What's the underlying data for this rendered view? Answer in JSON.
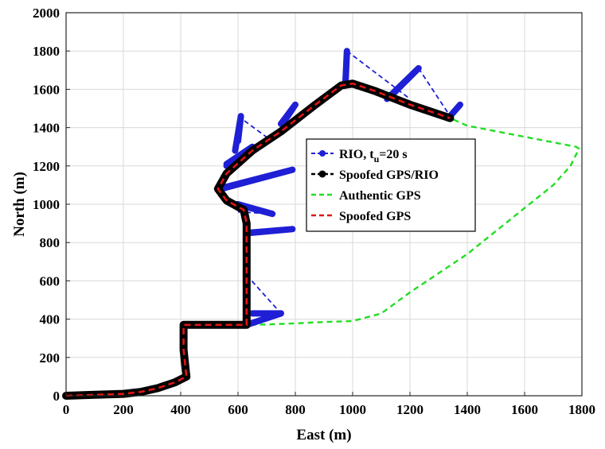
{
  "chart_data": {
    "type": "line",
    "title": "",
    "xlabel": "East (m)",
    "ylabel": "North (m)",
    "xlim": [
      0,
      1800
    ],
    "ylim": [
      0,
      2000
    ],
    "xticks": [
      "0",
      "200",
      "400",
      "600",
      "800",
      "1000",
      "1200",
      "1400",
      "1600",
      "1800"
    ],
    "yticks": [
      "0",
      "200",
      "400",
      "600",
      "800",
      "1000",
      "1200",
      "1400",
      "1600",
      "1800",
      "2000"
    ],
    "grid": true,
    "legend_position": "center-right",
    "series": [
      {
        "name": "RIO, t",
        "name_sub": "u",
        "name_suffix": "=20 s",
        "color": "#1f1fd6",
        "style": "dashed-with-markers",
        "segments": [
          [
            [
              630,
              370
            ],
            [
              750,
              430
            ],
            [
              650,
              430
            ]
          ],
          [
            [
              630,
              850
            ],
            [
              790,
              870
            ],
            [
              640,
              850
            ]
          ],
          [
            [
              600,
              1000
            ],
            [
              720,
              950
            ],
            [
              595,
              1000
            ]
          ],
          [
            [
              540,
              1080
            ],
            [
              790,
              1180
            ],
            [
              545,
              1085
            ]
          ],
          [
            [
              560,
              1200
            ],
            [
              650,
              1300
            ],
            [
              560,
              1210
            ]
          ],
          [
            [
              600,
              1330
            ],
            [
              610,
              1460
            ],
            [
              590,
              1280
            ]
          ],
          [
            [
              750,
              1420
            ],
            [
              800,
              1520
            ],
            [
              760,
              1430
            ]
          ],
          [
            [
              975,
              1630
            ],
            [
              980,
              1800
            ],
            [
              975,
              1640
            ]
          ],
          [
            [
              1120,
              1550
            ],
            [
              1230,
              1710
            ],
            [
              1130,
              1560
            ]
          ],
          [
            [
              1340,
              1460
            ],
            [
              1375,
              1520
            ]
          ]
        ],
        "dashed_links": [
          [
            [
              630,
              370
            ],
            [
              750,
              430
            ]
          ],
          [
            [
              630,
              630
            ],
            [
              750,
              430
            ]
          ],
          [
            [
              600,
              960
            ],
            [
              720,
              950
            ]
          ],
          [
            [
              540,
              1080
            ],
            [
              790,
              1180
            ]
          ],
          [
            [
              600,
              1460
            ],
            [
              700,
              1350
            ]
          ],
          [
            [
              980,
              1800
            ],
            [
              1200,
              1550
            ]
          ],
          [
            [
              1230,
              1710
            ],
            [
              1340,
              1460
            ]
          ]
        ]
      },
      {
        "name": "Spoofed GPS/RIO",
        "color": "#000000",
        "style": "solid-with-markers",
        "x": [
          0,
          100,
          200,
          260,
          320,
          380,
          420,
          410,
          410,
          440,
          560,
          630,
          630,
          630,
          620,
          560,
          530,
          560,
          650,
          750,
          870,
          960,
          1000,
          1080,
          1200,
          1340
        ],
        "y": [
          0,
          5,
          10,
          20,
          40,
          70,
          100,
          240,
          370,
          370,
          370,
          370,
          600,
          900,
          970,
          1020,
          1080,
          1160,
          1280,
          1380,
          1520,
          1620,
          1630,
          1590,
          1520,
          1450
        ]
      },
      {
        "name": "Authentic GPS",
        "color": "#22dd22",
        "style": "dashed",
        "x": [
          410,
          630,
          700,
          800,
          900,
          1000,
          1100,
          1200,
          1300,
          1400,
          1500,
          1600,
          1700,
          1760,
          1790,
          1780,
          1400,
          1340
        ],
        "y": [
          370,
          370,
          372,
          378,
          385,
          390,
          430,
          540,
          640,
          740,
          860,
          980,
          1100,
          1200,
          1290,
          1300,
          1410,
          1450
        ]
      },
      {
        "name": "Spoofed GPS",
        "color": "#e01515",
        "style": "dashed",
        "x": [
          0,
          100,
          200,
          260,
          320,
          380,
          420,
          410,
          410,
          440,
          560,
          630,
          630,
          630,
          620,
          560,
          530,
          560,
          650,
          750,
          870,
          960,
          1000,
          1080,
          1200,
          1340
        ],
        "y": [
          0,
          5,
          10,
          20,
          40,
          70,
          100,
          240,
          370,
          370,
          370,
          370,
          600,
          900,
          970,
          1020,
          1080,
          1160,
          1280,
          1380,
          1520,
          1620,
          1630,
          1590,
          1520,
          1450
        ]
      }
    ]
  }
}
